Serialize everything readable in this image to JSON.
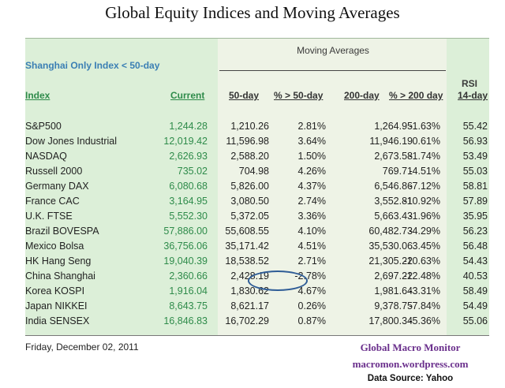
{
  "title": "Global Equity Indices and Moving Averages",
  "header": {
    "note": "Shanghai Only Index < 50-day",
    "moving_averages": "Moving Averages",
    "rsi_label": "RSI"
  },
  "columns": {
    "index": "Index",
    "current": "Current",
    "ma50": "50-day",
    "pct50": "% > 50-day",
    "ma200": "200-day",
    "pct200": "% > 200 day",
    "rsi": "14-day"
  },
  "rows": [
    {
      "name": "S&P500",
      "current": "1,244.28",
      "ma50": "1,210.26",
      "pct50": "2.81%",
      "ma200": "1,264.95",
      "pct200": "-1.63%",
      "rsi": "55.42"
    },
    {
      "name": "Dow Jones Industrial",
      "current": "12,019.42",
      "ma50": "11,596.98",
      "pct50": "3.64%",
      "ma200": "11,946.19",
      "pct200": "0.61%",
      "rsi": "56.93"
    },
    {
      "name": "NASDAQ",
      "current": "2,626.93",
      "ma50": "2,588.20",
      "pct50": "1.50%",
      "ma200": "2,673.58",
      "pct200": "-1.74%",
      "rsi": "53.49"
    },
    {
      "name": "Russell 2000",
      "current": "735.02",
      "ma50": "704.98",
      "pct50": "4.26%",
      "ma200": "769.71",
      "pct200": "-4.51%",
      "rsi": "55.03"
    },
    {
      "name": "Germany DAX",
      "current": "6,080.68",
      "ma50": "5,826.00",
      "pct50": "4.37%",
      "ma200": "6,546.86",
      "pct200": "-7.12%",
      "rsi": "58.81"
    },
    {
      "name": "France CAC",
      "current": "3,164.95",
      "ma50": "3,080.50",
      "pct50": "2.74%",
      "ma200": "3,552.81",
      "pct200": "-10.92%",
      "rsi": "57.89"
    },
    {
      "name": "U.K. FTSE",
      "current": "5,552.30",
      "ma50": "5,372.05",
      "pct50": "3.36%",
      "ma200": "5,663.43",
      "pct200": "-1.96%",
      "rsi": "35.95"
    },
    {
      "name": "Brazil BOVESPA",
      "current": "57,886.00",
      "ma50": "55,608.55",
      "pct50": "4.10%",
      "ma200": "60,482.73",
      "pct200": "-4.29%",
      "rsi": "56.23"
    },
    {
      "name": "Mexico Bolsa",
      "current": "36,756.06",
      "ma50": "35,171.42",
      "pct50": "4.51%",
      "ma200": "35,530.06",
      "pct200": "3.45%",
      "rsi": "56.48"
    },
    {
      "name": "HK  Hang Seng",
      "current": "19,040.39",
      "ma50": "18,538.52",
      "pct50": "2.71%",
      "ma200": "21,305.22",
      "pct200": "-10.63%",
      "rsi": "54.43"
    },
    {
      "name": "China Shanghai",
      "current": "2,360.66",
      "ma50": "2,428.19",
      "pct50": "-2.78%",
      "ma200": "2,697.22",
      "pct200": "-12.48%",
      "rsi": "40.53"
    },
    {
      "name": "Korea KOSPI",
      "current": "1,916.04",
      "ma50": "1,830.62",
      "pct50": "4.67%",
      "ma200": "1,981.64",
      "pct200": "-3.31%",
      "rsi": "58.49"
    },
    {
      "name": "Japan NIKKEI",
      "current": "8,643.75",
      "ma50": "8,621.17",
      "pct50": "0.26%",
      "ma200": "9,378.75",
      "pct200": "-7.84%",
      "rsi": "54.49"
    },
    {
      "name": "India SENSEX",
      "current": "16,846.83",
      "ma50": "16,702.29",
      "pct50": "0.87%",
      "ma200": "17,800.34",
      "pct200": "-5.36%",
      "rsi": "55.06"
    }
  ],
  "footer": {
    "date": "Friday, December 02, 2011",
    "brand": "Global Macro Monitor",
    "site": "macromon.wordpress.com",
    "source": "Data Source: Yahoo"
  },
  "colors": {
    "header_note": "#3b7fb4",
    "current_values": "#2e8b4a",
    "circle": "#2e5c96",
    "credit": "#6a2f8c",
    "left_band": "#dcefd8",
    "middle_band": "#eef3e6"
  },
  "highlight": {
    "row": "China Shanghai",
    "column": "% > 50-day"
  }
}
